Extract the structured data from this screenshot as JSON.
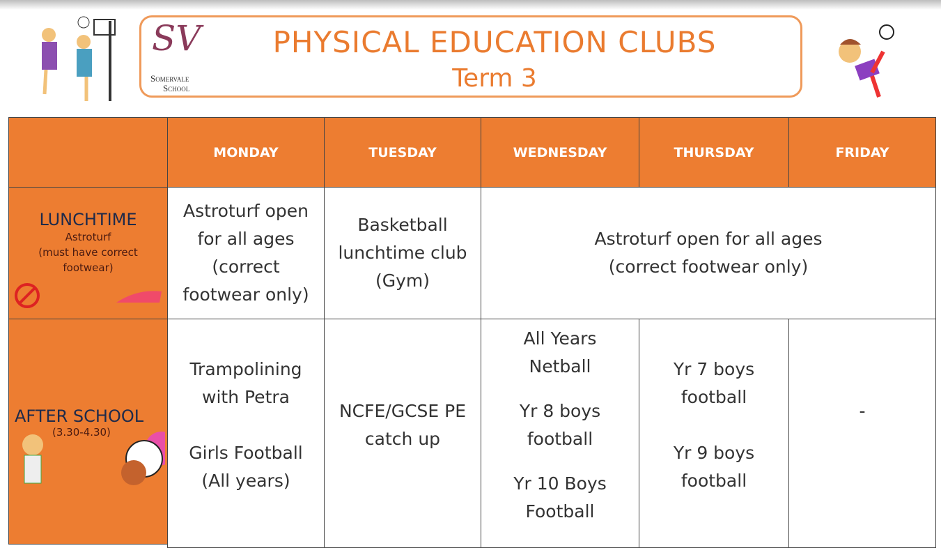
{
  "header": {
    "logo_initials": "SV",
    "logo_school_line1": "Somervale",
    "logo_school_line2": "School",
    "title": "PHYSICAL EDUCATION CLUBS",
    "subtitle": "Term 3"
  },
  "table": {
    "columns": [
      "MONDAY",
      "TUESDAY",
      "WEDNESDAY",
      "THURSDAY",
      "FRIDAY"
    ],
    "rows": [
      {
        "label": "LUNCHTIME",
        "sublabel": [
          "Astroturf",
          "(must have correct",
          "footwear)"
        ],
        "cells": [
          [
            [
              "Astroturf open",
              "for all ages",
              "(correct",
              "footwear only)"
            ]
          ],
          [
            [
              "Basketball",
              "lunchtime club",
              "(Gym)"
            ]
          ],
          [
            [
              "Astroturf open for all ages",
              "(correct footwear only)"
            ]
          ]
        ]
      },
      {
        "label": "AFTER SCHOOL",
        "sublabel": [
          "(3.30-4.30)"
        ],
        "cells": [
          [
            [
              "Trampolining",
              "with Petra"
            ],
            [
              "Girls Football",
              "(All years)"
            ]
          ],
          [
            [
              "NCFE/GCSE PE",
              "catch up"
            ]
          ],
          [
            [
              "All Years",
              "Netball"
            ],
            [
              "Yr 8 boys",
              "football"
            ],
            [
              "Yr 10 Boys",
              "Football"
            ]
          ],
          [
            [
              "Yr 7 boys",
              "football"
            ],
            [
              "Yr 9 boys",
              "football"
            ]
          ],
          [
            [
              "-"
            ]
          ]
        ]
      }
    ]
  }
}
